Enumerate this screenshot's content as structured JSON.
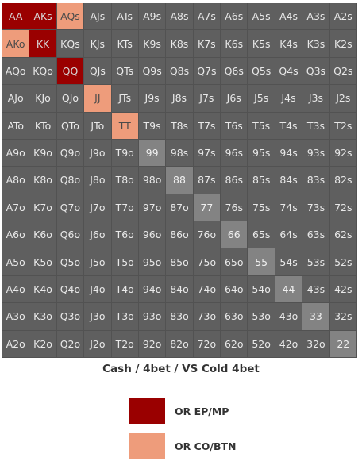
{
  "chart_data": {
    "type": "heatmap",
    "title": "Cash / 4bet / VS Cold 4bet",
    "colors": {
      "fold": "#5f5f5f",
      "pair_fold": "#838383",
      "or_ep_mp": "#9a0000",
      "or_co_btn": "#ee9c7b"
    },
    "rows": [
      [
        "AA",
        "AKs",
        "AQs",
        "AJs",
        "ATs",
        "A9s",
        "A8s",
        "A7s",
        "A6s",
        "A5s",
        "A4s",
        "A3s",
        "A2s"
      ],
      [
        "AKo",
        "KK",
        "KQs",
        "KJs",
        "KTs",
        "K9s",
        "K8s",
        "K7s",
        "K6s",
        "K5s",
        "K4s",
        "K3s",
        "K2s"
      ],
      [
        "AQo",
        "KQo",
        "QQ",
        "QJs",
        "QTs",
        "Q9s",
        "Q8s",
        "Q7s",
        "Q6s",
        "Q5s",
        "Q4s",
        "Q3s",
        "Q2s"
      ],
      [
        "AJo",
        "KJo",
        "QJo",
        "JJ",
        "JTs",
        "J9s",
        "J8s",
        "J7s",
        "J6s",
        "J5s",
        "J4s",
        "J3s",
        "J2s"
      ],
      [
        "ATo",
        "KTo",
        "QTo",
        "JTo",
        "TT",
        "T9s",
        "T8s",
        "T7s",
        "T6s",
        "T5s",
        "T4s",
        "T3s",
        "T2s"
      ],
      [
        "A9o",
        "K9o",
        "Q9o",
        "J9o",
        "T9o",
        "99",
        "98s",
        "97s",
        "96s",
        "95s",
        "94s",
        "93s",
        "92s"
      ],
      [
        "A8o",
        "K8o",
        "Q8o",
        "J8o",
        "T8o",
        "98o",
        "88",
        "87s",
        "86s",
        "85s",
        "84s",
        "83s",
        "82s"
      ],
      [
        "A7o",
        "K7o",
        "Q7o",
        "J7o",
        "T7o",
        "97o",
        "87o",
        "77",
        "76s",
        "75s",
        "74s",
        "73s",
        "72s"
      ],
      [
        "A6o",
        "K6o",
        "Q6o",
        "J6o",
        "T6o",
        "96o",
        "86o",
        "76o",
        "66",
        "65s",
        "64s",
        "63s",
        "62s"
      ],
      [
        "A5o",
        "K5o",
        "Q5o",
        "J5o",
        "T5o",
        "95o",
        "85o",
        "75o",
        "65o",
        "55",
        "54s",
        "53s",
        "52s"
      ],
      [
        "A4o",
        "K4o",
        "Q4o",
        "J4o",
        "T4o",
        "94o",
        "84o",
        "74o",
        "64o",
        "54o",
        "44",
        "43s",
        "42s"
      ],
      [
        "A3o",
        "K3o",
        "Q3o",
        "J3o",
        "T3o",
        "93o",
        "83o",
        "73o",
        "63o",
        "53o",
        "43o",
        "33",
        "32s"
      ],
      [
        "A2o",
        "K2o",
        "Q2o",
        "J2o",
        "T2o",
        "92o",
        "82o",
        "72o",
        "62o",
        "52o",
        "42o",
        "32o",
        "22"
      ]
    ],
    "highlights": {
      "or_ep_mp": [
        "AA",
        "AKs",
        "KK",
        "QQ"
      ],
      "or_co_btn": [
        "AQs",
        "AKo",
        "JJ",
        "TT"
      ]
    },
    "legend": [
      {
        "key": "or_ep_mp",
        "label": "OR EP/MP"
      },
      {
        "key": "or_co_btn",
        "label": "OR CO/BTN"
      }
    ]
  }
}
